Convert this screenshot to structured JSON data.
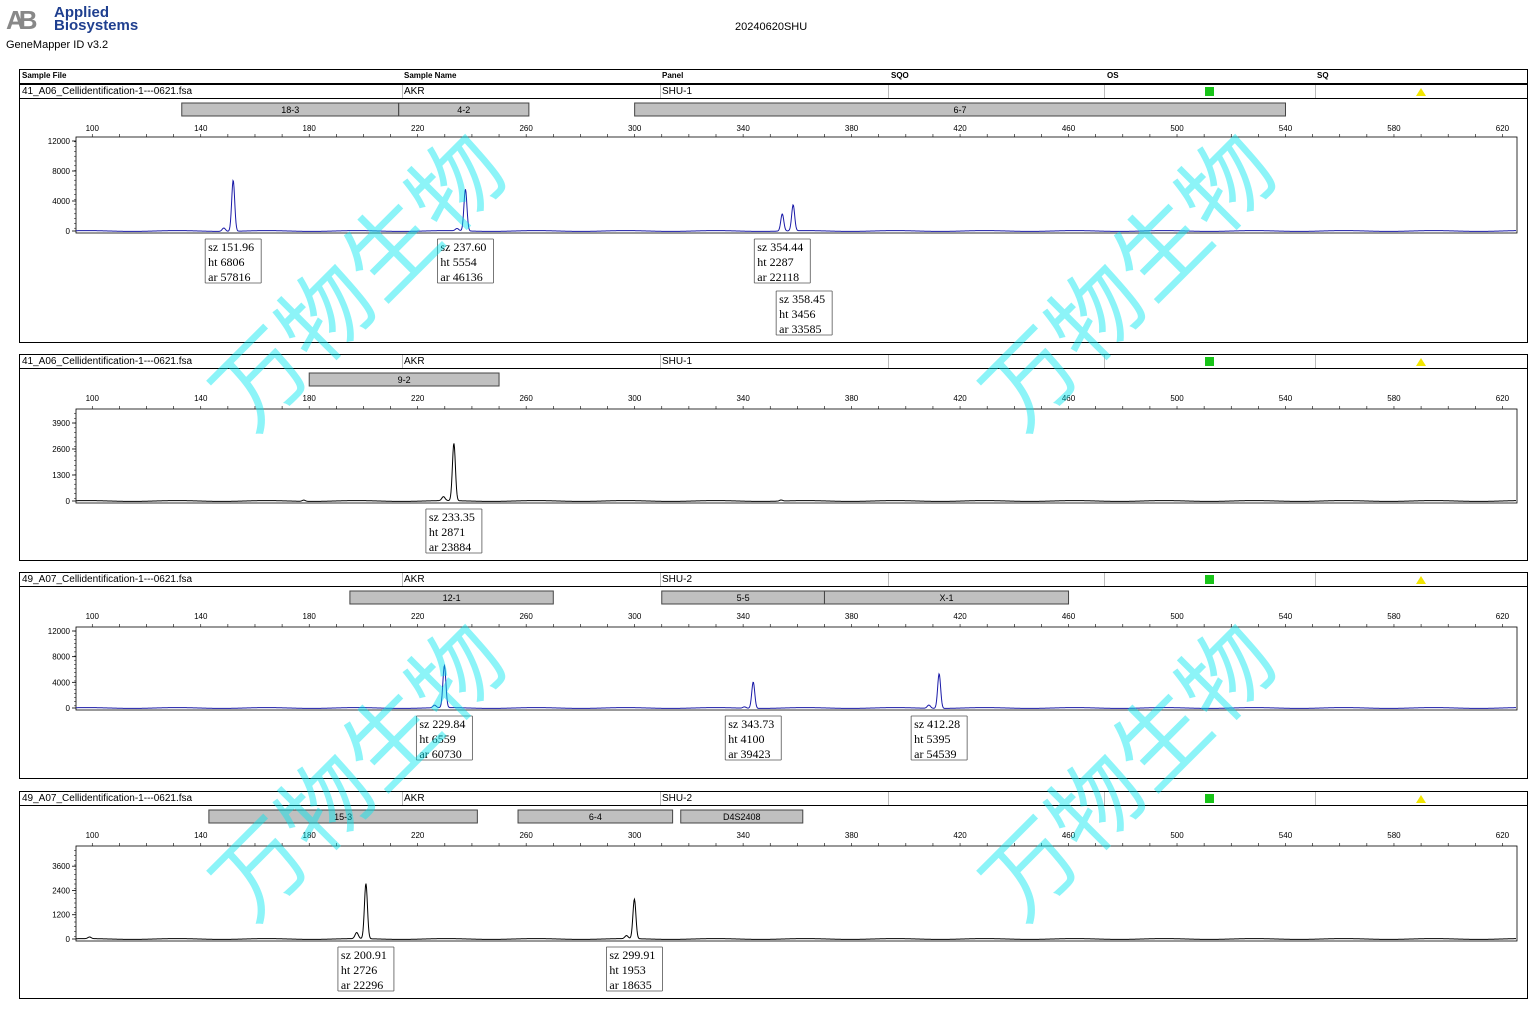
{
  "app": {
    "brand_mark": "AB",
    "brand_line1": "Applied",
    "brand_line2": "Biosystems",
    "version": "GeneMapper ID v3.2",
    "run_title": "20240620SHU"
  },
  "header": {
    "sample_file": "Sample File",
    "sample_name": "Sample Name",
    "panel": "Panel",
    "sqo": "SQO",
    "os": "OS",
    "sq": "SQ"
  },
  "colors": {
    "blue": "#1a1aa8",
    "black": "#000000",
    "marker_fill": "#c0c0c0",
    "qc_green": "#19c419",
    "qc_yellow": "#f2e600",
    "watermark": "#00e6f0"
  },
  "watermark_text": "万物生物",
  "chart_data": [
    {
      "type": "line",
      "sample_file": "41_A06_Cellidentification-1---0621.fsa",
      "sample_name": "AKR",
      "panel": "SHU-1",
      "color": "blue",
      "x_ticks": [
        100,
        140,
        180,
        220,
        260,
        300,
        340,
        380,
        420,
        460,
        500,
        540,
        580,
        620
      ],
      "xlim": [
        94,
        625
      ],
      "ylim": [
        0,
        12000
      ],
      "y_ticks": [
        0,
        4000,
        8000,
        12000
      ],
      "markers": [
        {
          "label": "18-3",
          "start": 133,
          "end": 213
        },
        {
          "label": "4-2",
          "start": 213,
          "end": 261
        },
        {
          "label": "6-7",
          "start": 300,
          "end": 540
        }
      ],
      "peaks": [
        {
          "size": 151.96,
          "height": 6806,
          "area": 57816
        },
        {
          "size": 237.6,
          "height": 5554,
          "area": 46136
        },
        {
          "size": 354.44,
          "height": 2287,
          "area": 22118
        },
        {
          "size": 358.45,
          "height": 3456,
          "area": 33585
        }
      ],
      "minor_peaks": [
        {
          "size": 148.5,
          "height": 450
        },
        {
          "size": 234.5,
          "height": 300
        }
      ],
      "labels": [
        {
          "sz": "sz 151.96",
          "ht": "ht 6806",
          "ar": "ar 57816"
        },
        {
          "sz": "sz 237.60",
          "ht": "ht 5554",
          "ar": "ar 46136"
        },
        {
          "sz": "sz 354.44",
          "ht": "ht 2287",
          "ar": "ar 22118"
        },
        {
          "sz": "sz 358.45",
          "ht": "ht 3456",
          "ar": "ar 33585"
        }
      ]
    },
    {
      "type": "line",
      "sample_file": "41_A06_Cellidentification-1---0621.fsa",
      "sample_name": "AKR",
      "panel": "SHU-1",
      "color": "black",
      "x_ticks": [
        100,
        140,
        180,
        220,
        260,
        300,
        340,
        380,
        420,
        460,
        500,
        540,
        580,
        620
      ],
      "xlim": [
        94,
        625
      ],
      "ylim": [
        0,
        4400
      ],
      "y_ticks": [
        0,
        1300,
        2600,
        3900
      ],
      "markers": [
        {
          "label": "9-2",
          "start": 180,
          "end": 250
        }
      ],
      "peaks": [
        {
          "size": 233.35,
          "height": 2871,
          "area": 23884
        }
      ],
      "minor_peaks": [
        {
          "size": 229.5,
          "height": 200
        },
        {
          "size": 178,
          "height": 60
        },
        {
          "size": 354,
          "height": 50
        }
      ],
      "labels": [
        {
          "sz": "sz 233.35",
          "ht": "ht 2871",
          "ar": "ar 23884"
        }
      ]
    },
    {
      "type": "line",
      "sample_file": "49_A07_Cellidentification-1---0621.fsa",
      "sample_name": "AKR",
      "panel": "SHU-2",
      "color": "blue",
      "x_ticks": [
        100,
        140,
        180,
        220,
        260,
        300,
        340,
        380,
        420,
        460,
        500,
        540,
        580,
        620
      ],
      "xlim": [
        94,
        625
      ],
      "ylim": [
        0,
        12000
      ],
      "y_ticks": [
        0,
        4000,
        8000,
        12000
      ],
      "markers": [
        {
          "label": "12-1",
          "start": 195,
          "end": 270
        },
        {
          "label": "5-5",
          "start": 310,
          "end": 370
        },
        {
          "label": "X-1",
          "start": 370,
          "end": 460
        }
      ],
      "peaks": [
        {
          "size": 229.84,
          "height": 6559,
          "area": 60730
        },
        {
          "size": 343.73,
          "height": 4100,
          "area": 39423
        },
        {
          "size": 412.28,
          "height": 5395,
          "area": 54539
        }
      ],
      "minor_peaks": [
        {
          "size": 226.2,
          "height": 400
        },
        {
          "size": 340.5,
          "height": 200
        },
        {
          "size": 408.5,
          "height": 500
        }
      ],
      "labels": [
        {
          "sz": "sz 229.84",
          "ht": "ht 6559",
          "ar": "ar 60730"
        },
        {
          "sz": "sz 343.73",
          "ht": "ht 4100",
          "ar": "ar 39423"
        },
        {
          "sz": "sz 412.28",
          "ht": "ht 5395",
          "ar": "ar 54539"
        }
      ]
    },
    {
      "type": "line",
      "sample_file": "49_A07_Cellidentification-1---0621.fsa",
      "sample_name": "AKR",
      "panel": "SHU-2",
      "color": "black",
      "x_ticks": [
        100,
        140,
        180,
        220,
        260,
        300,
        340,
        380,
        420,
        460,
        500,
        540,
        580,
        620
      ],
      "xlim": [
        94,
        625
      ],
      "ylim": [
        0,
        4400
      ],
      "y_ticks": [
        0,
        1200,
        2400,
        3600
      ],
      "markers": [
        {
          "label": "15-3",
          "start": 143,
          "end": 242
        },
        {
          "label": "6-4",
          "start": 257,
          "end": 314
        },
        {
          "label": "D4S2408",
          "start": 317,
          "end": 362
        }
      ],
      "peaks": [
        {
          "size": 200.91,
          "height": 2726,
          "area": 22296
        },
        {
          "size": 299.91,
          "height": 1953,
          "area": 18635
        }
      ],
      "minor_peaks": [
        {
          "size": 197.5,
          "height": 300
        },
        {
          "size": 297,
          "height": 150
        },
        {
          "size": 99,
          "height": 80
        }
      ],
      "labels": [
        {
          "sz": "sz 200.91",
          "ht": "ht 2726",
          "ar": "ar 22296"
        },
        {
          "sz": "sz 299.91",
          "ht": "ht 1953",
          "ar": "ar 18635"
        }
      ]
    }
  ]
}
